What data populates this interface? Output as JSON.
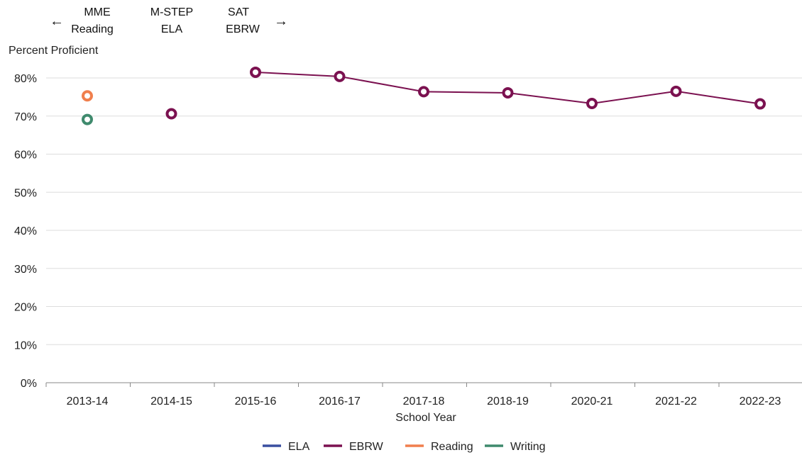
{
  "chart_data": {
    "type": "line",
    "title": "",
    "ylabel": "Percent Proficient",
    "xlabel": "School Year",
    "categories": [
      "2013-14",
      "2014-15",
      "2015-16",
      "2016-17",
      "2017-18",
      "2018-19",
      "2020-21",
      "2021-22",
      "2022-23"
    ],
    "ylim": [
      0,
      80
    ],
    "yticks": [
      0,
      10,
      20,
      30,
      40,
      50,
      60,
      70,
      80
    ],
    "ytick_labels": [
      "0%",
      "10%",
      "20%",
      "30%",
      "40%",
      "50%",
      "60%",
      "70%",
      "80%"
    ],
    "grid": true,
    "legend_position": "bottom",
    "series": [
      {
        "name": "ELA",
        "color": "#3a4fa0",
        "values": [
          null,
          null,
          null,
          null,
          null,
          null,
          null,
          null,
          null
        ]
      },
      {
        "name": "EBRW",
        "color": "#7b1150",
        "values": [
          null,
          70.6,
          81.5,
          80.4,
          76.4,
          76.1,
          73.3,
          76.5,
          73.2
        ]
      },
      {
        "name": "Reading",
        "color": "#f07f4d",
        "values": [
          75.3,
          null,
          null,
          null,
          null,
          null,
          null,
          null,
          null
        ]
      },
      {
        "name": "Writing",
        "color": "#3f8a6d",
        "values": [
          69.1,
          null,
          null,
          null,
          null,
          null,
          null,
          null,
          null
        ]
      }
    ],
    "line_segments": [
      {
        "series": "EBRW",
        "from_index": 2,
        "to_index": 8
      }
    ],
    "annotations": [
      {
        "lines": [
          "MME",
          "Reading"
        ],
        "arrow": "left-arrow-icon",
        "arrow_glyph": "←"
      },
      {
        "lines": [
          "M-STEP",
          "ELA"
        ]
      },
      {
        "lines": [
          "SAT",
          "EBRW"
        ],
        "arrow": "right-arrow-icon",
        "arrow_glyph": "→"
      }
    ]
  }
}
